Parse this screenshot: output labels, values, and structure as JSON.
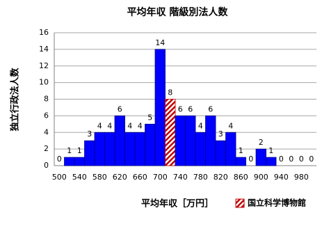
{
  "chart_data": {
    "type": "bar",
    "title": "平均年収 階級別法人数",
    "x_label": "平均年収［万円］",
    "y_label": "独立行政法人数",
    "categories": [
      "500",
      null,
      "540",
      null,
      "580",
      null,
      "620",
      null,
      "660",
      null,
      "700",
      null,
      "740",
      null,
      "780",
      null,
      "820",
      null,
      "860",
      null,
      "900",
      null,
      "940",
      null,
      "980",
      null
    ],
    "values": [
      0,
      1,
      1,
      3,
      4,
      4,
      6,
      4,
      4,
      5,
      14,
      8,
      6,
      6,
      4,
      6,
      3,
      4,
      1,
      0,
      2,
      1,
      0,
      0,
      0,
      0
    ],
    "color": "#0000ff",
    "highlight": {
      "name": "国立科学博物館",
      "color": "#c00000",
      "index": 11
    },
    "ylim": [
      0,
      16
    ],
    "yticks": [
      0,
      2,
      4,
      6,
      8,
      10,
      12,
      14,
      16
    ],
    "grid": true
  }
}
